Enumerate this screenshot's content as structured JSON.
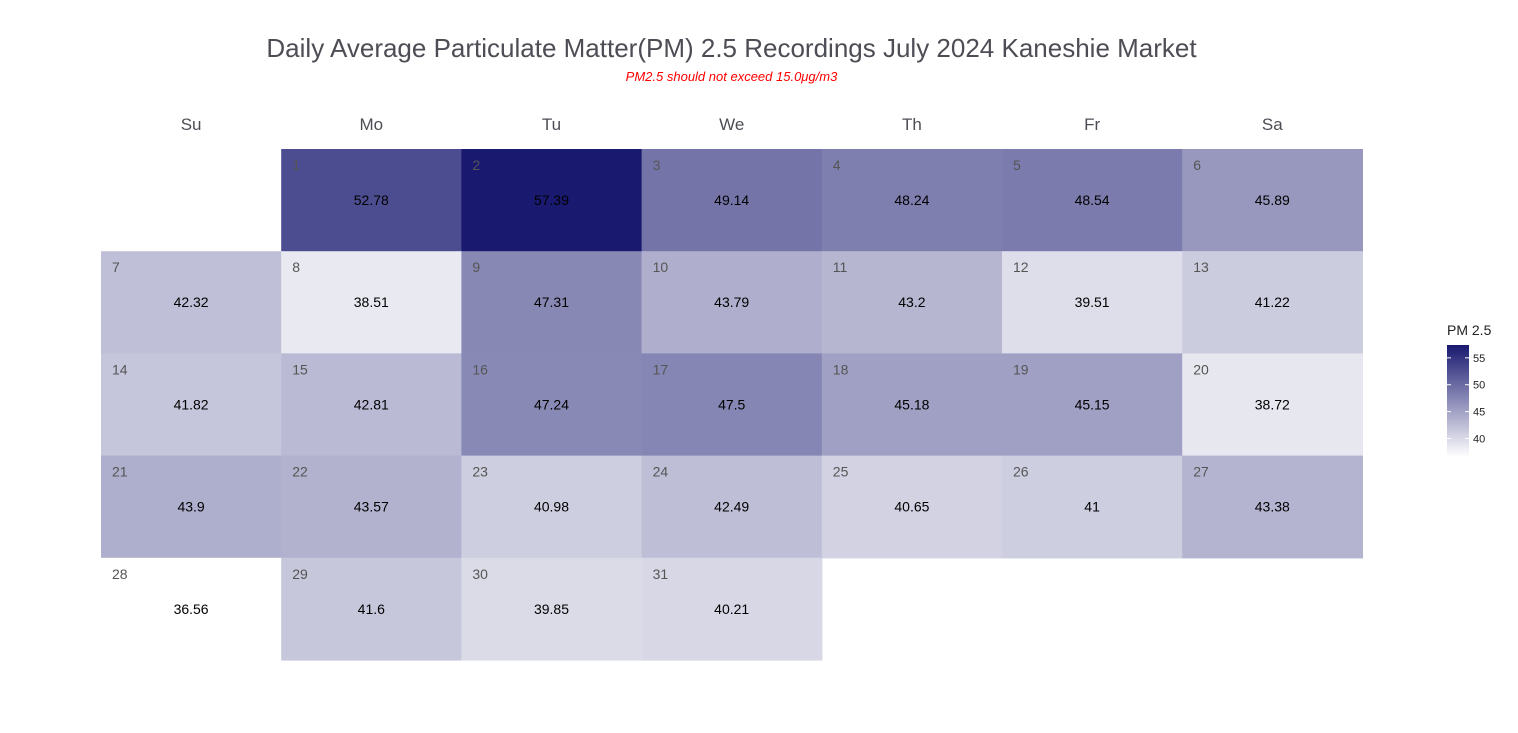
{
  "chart_data": {
    "type": "heatmap",
    "title": "Daily Average Particulate Matter(PM) 2.5 Recordings July 2024 Kaneshie Market",
    "subtitle": "PM2.5 should not exceed 15.0μg/m3",
    "weekdays": [
      "Su",
      "Mo",
      "Tu",
      "We",
      "Th",
      "Fr",
      "Sa"
    ],
    "first_weekday_index": 1,
    "days": [
      1,
      2,
      3,
      4,
      5,
      6,
      7,
      8,
      9,
      10,
      11,
      12,
      13,
      14,
      15,
      16,
      17,
      18,
      19,
      20,
      21,
      22,
      23,
      24,
      25,
      26,
      27,
      28,
      29,
      30,
      31
    ],
    "day_labels": [
      "1",
      "2",
      "3",
      "4",
      "5",
      "6",
      "7",
      "8",
      "9",
      "10",
      "11",
      "12",
      "13",
      "14",
      "15",
      "16",
      "17",
      "18",
      "19",
      "20",
      "21",
      "22",
      "23",
      "24",
      "25",
      "26",
      "27",
      "28",
      "29",
      "30",
      "31"
    ],
    "values": [
      52.78,
      57.39,
      49.14,
      48.24,
      48.54,
      45.89,
      42.32,
      38.51,
      47.31,
      43.79,
      43.2,
      39.51,
      41.22,
      41.82,
      42.81,
      47.24,
      47.5,
      45.18,
      45.15,
      38.72,
      43.9,
      43.57,
      40.98,
      42.49,
      40.65,
      41,
      43.38,
      36.56,
      41.6,
      39.85,
      40.21
    ],
    "value_labels": [
      "52.78",
      "57.39",
      "49.14",
      "48.24",
      "48.54",
      "45.89",
      "42.32",
      "38.51",
      "47.31",
      "43.79",
      "43.2",
      "39.51",
      "41.22",
      "41.82",
      "42.81",
      "47.24",
      "47.5",
      "45.18",
      "45.15",
      "38.72",
      "43.9",
      "43.57",
      "40.98",
      "42.49",
      "40.65",
      "41",
      "43.38",
      "36.56",
      "41.6",
      "39.85",
      "40.21"
    ],
    "color_scale": {
      "low": "#ffffff",
      "high": "#191970",
      "min": 36.56,
      "max": 57.39
    },
    "legend": {
      "title": "PM 2.5",
      "ticks": [
        55,
        50,
        45,
        40
      ],
      "tick_labels": [
        "55",
        "50",
        "45",
        "40"
      ],
      "position": "right"
    }
  }
}
